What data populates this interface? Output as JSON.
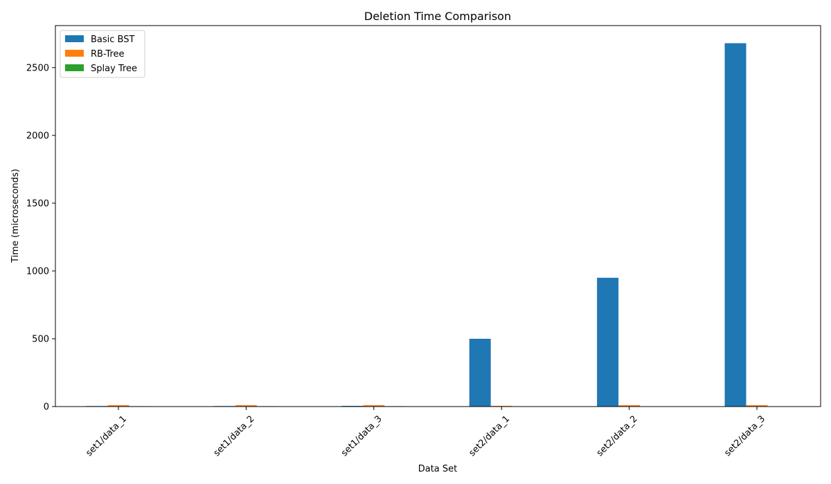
{
  "chart_data": {
    "type": "bar",
    "title": "Deletion Time Comparison",
    "xlabel": "Data Set",
    "ylabel": "Time (microseconds)",
    "categories": [
      "set1/data_1",
      "set1/data_2",
      "set1/data_3",
      "set2/data_1",
      "set2/data_2",
      "set2/data_3"
    ],
    "series": [
      {
        "name": "Basic BST",
        "color": "#1f77b4",
        "values": [
          4,
          4,
          5,
          500,
          950,
          2680
        ]
      },
      {
        "name": "RB-Tree",
        "color": "#ff7f0e",
        "values": [
          10,
          10,
          10,
          5,
          10,
          10
        ]
      },
      {
        "name": "Splay Tree",
        "color": "#2ca02c",
        "values": [
          3,
          3,
          3,
          1,
          1,
          1
        ]
      }
    ],
    "ylim": [
      0,
      2810
    ],
    "yticks": [
      0,
      500,
      1000,
      1500,
      2000,
      2500
    ],
    "grid": false,
    "legend_position": "top-left"
  }
}
